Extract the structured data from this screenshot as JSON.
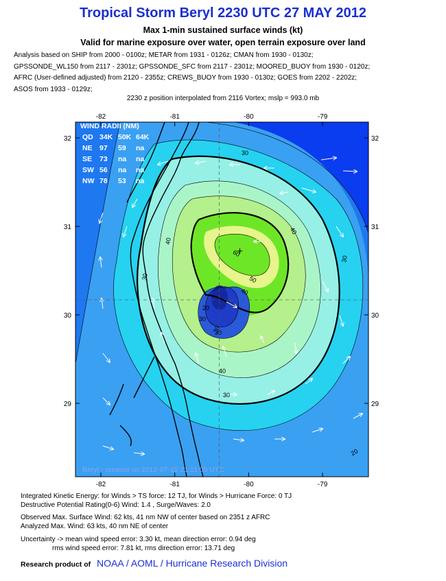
{
  "header": {
    "title": "Tropical Storm Beryl 2230 UTC 27 MAY 2012",
    "subtitle1": "Max 1-min sustained surface winds (kt)",
    "subtitle2": "Valid for marine exposure over water, open terrain exposure over land"
  },
  "analysis_lines": [
    "Analysis based on SHIP from 2000 - 0100z; METAR from 1931 - 0126z; CMAN from 1930 - 0130z;",
    "GPSSONDE_WL150 from 2117 - 2301z; GPSSONDE_SFC from 2117 - 2301z; MOORED_BUOY from 1930 - 0120z;",
    "AFRC (User-defined adjusted) from 2120 - 2355z; CREWS_BUOY from 1930 - 0130z; GOES from 2202 - 2202z;",
    "ASOS from 1933 - 0129z;"
  ],
  "position_note": "2230 z position interpolated from 2116 Vortex; mslp = 993.0 mb",
  "map": {
    "lon_ticks": [
      -82,
      -81,
      -80,
      -79
    ],
    "lat_ticks": [
      32,
      31,
      30,
      29
    ],
    "lon_labels": [
      "-82",
      "-81",
      "-80",
      "-79"
    ],
    "lat_labels": [
      "32",
      "31",
      "30",
      "29"
    ],
    "center": {
      "lon": -80.4,
      "lat": 30.17
    },
    "max_wind_marker": {
      "lon": -80.12,
      "lat": 30.72
    },
    "contour_labels": [
      "30",
      "30",
      "30",
      "30",
      "40",
      "40",
      "40",
      "40",
      "50",
      "60",
      "20",
      "30",
      "30",
      "20",
      "30"
    ],
    "watermark": "Beryl - created on 2012-07-15 21:11:09 UTC",
    "colors": {
      "c20": "#0a3cf0",
      "c30": "#1e78f0",
      "c40": "#3aa0f2",
      "c50": "#26d2f0",
      "c60": "#96f0e6",
      "c70": "#aaf5c8",
      "c80": "#b4f08c",
      "c90": "#6ee628",
      "c100": "#e6f58c",
      "eye1": "#2a5ad8",
      "eye2": "#1e3cc8",
      "eye3": "#1428a0"
    }
  },
  "wind_radii": {
    "title": "WIND RADII (NM)",
    "header": [
      "QD",
      "34K",
      "50K",
      "64K"
    ],
    "rows": [
      [
        "NE",
        "97",
        "59",
        "na"
      ],
      [
        "SE",
        "73",
        "na",
        "na"
      ],
      [
        "SW",
        "56",
        "na",
        "na"
      ],
      [
        "NW",
        "78",
        "53",
        "na"
      ]
    ]
  },
  "footer": {
    "ike": "Integrated Kinetic Energy: for Winds > TS force: 12 TJ, for Winds > Hurricane Force: 0 TJ",
    "dpr": "Destructive Potential Rating(0-6)  Wind: 1.4 , Surge/Waves: 2.0",
    "observed": "Observed Max. Surface Wind: 62 kts, 41 nm NW of center based on 2351 z AFRC",
    "analyzed": "Analyzed Max. Wind: 63 kts, 40 nm  NE of center",
    "uncertainty1": "Uncertainty -> mean wind speed error: 3.30 kt, mean direction error: 0.94 deg",
    "uncertainty2": "rms wind speed error: 7.81 kt, rms direction error: 13.71 deg",
    "research_label": "Research product of",
    "research_org": "NOAA  /  AOML  /  Hurricane Research Division"
  }
}
